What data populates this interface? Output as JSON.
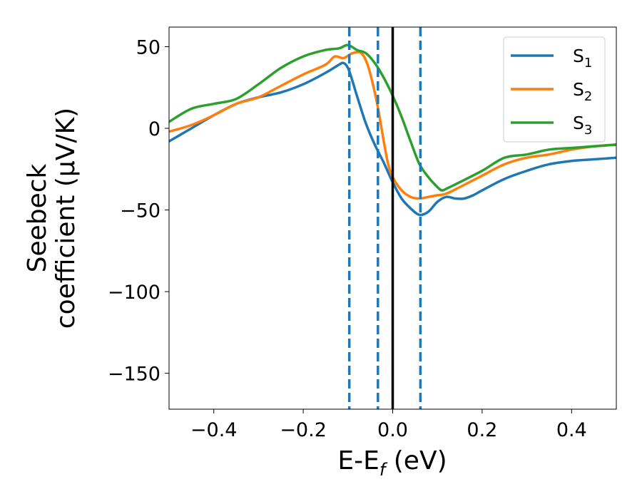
{
  "chart_data": {
    "type": "line",
    "xlabel": "E-E_f (eV)",
    "xlabel_parts": {
      "main": "E-E",
      "sub": "f",
      "tail": " (eV)"
    },
    "ylabel_lines": [
      "Seebeck",
      "coefficient  (μV/K)"
    ],
    "xlim": [
      -0.5,
      0.5
    ],
    "ylim": [
      -172,
      62
    ],
    "xticks": [
      -0.4,
      -0.2,
      0.0,
      0.2,
      0.4
    ],
    "xtick_labels": [
      "−0.4",
      "−0.2",
      "0.0",
      "0.2",
      "0.4"
    ],
    "yticks": [
      50,
      0,
      -50,
      -100,
      -150
    ],
    "ytick_labels": [
      "50",
      "0",
      "−50",
      "−100",
      "−150"
    ],
    "grid": false,
    "legend_position": "top-right",
    "series": [
      {
        "name": "S",
        "name_sub": "1",
        "color": "#1f77b4",
        "x": [
          -0.5,
          -0.45,
          -0.4,
          -0.35,
          -0.3,
          -0.25,
          -0.2,
          -0.15,
          -0.12,
          -0.11,
          -0.1,
          -0.09,
          -0.08,
          -0.06,
          -0.04,
          -0.02,
          0.0,
          0.02,
          0.04,
          0.06,
          0.08,
          0.1,
          0.12,
          0.14,
          0.16,
          0.18,
          0.2,
          0.25,
          0.3,
          0.35,
          0.4,
          0.45,
          0.5
        ],
        "y": [
          -8,
          0,
          8,
          15,
          19,
          22,
          27,
          34,
          39,
          40,
          37,
          29,
          20,
          3,
          -10,
          -21,
          -33,
          -43,
          -49,
          -53,
          -51,
          -45,
          -42,
          -43,
          -43,
          -41,
          -38,
          -31,
          -26,
          -22,
          -20,
          -19,
          -18
        ]
      },
      {
        "name": "S",
        "name_sub": "2",
        "color": "#ff7f0e",
        "x": [
          -0.5,
          -0.45,
          -0.4,
          -0.35,
          -0.3,
          -0.25,
          -0.2,
          -0.15,
          -0.13,
          -0.11,
          -0.09,
          -0.07,
          -0.055,
          -0.04,
          -0.03,
          -0.02,
          -0.01,
          0.0,
          0.02,
          0.04,
          0.06,
          0.08,
          0.1,
          0.12,
          0.15,
          0.2,
          0.25,
          0.3,
          0.35,
          0.4,
          0.45,
          0.5
        ],
        "y": [
          -2,
          2,
          8,
          15,
          19,
          26,
          33,
          39,
          44,
          43,
          46,
          46,
          38,
          22,
          8,
          -8,
          -22,
          -30,
          -38,
          -42,
          -43,
          -42,
          -41,
          -40,
          -36,
          -29,
          -22,
          -18,
          -16,
          -13,
          -11,
          -10
        ]
      },
      {
        "name": "S",
        "name_sub": "3",
        "color": "#2ca02c",
        "x": [
          -0.5,
          -0.45,
          -0.4,
          -0.35,
          -0.3,
          -0.25,
          -0.2,
          -0.15,
          -0.12,
          -0.1,
          -0.08,
          -0.06,
          -0.04,
          -0.02,
          0.0,
          0.02,
          0.04,
          0.06,
          0.08,
          0.1,
          0.11,
          0.12,
          0.15,
          0.2,
          0.25,
          0.3,
          0.35,
          0.4,
          0.45,
          0.5
        ],
        "y": [
          4,
          12,
          15,
          18,
          27,
          37,
          44,
          48,
          49,
          51,
          48,
          46,
          40,
          31,
          20,
          7,
          -8,
          -22,
          -30,
          -36,
          -38,
          -37,
          -33,
          -26,
          -18,
          -16,
          -13,
          -12,
          -11,
          -10
        ]
      }
    ],
    "reference_lines": [
      {
        "x": 0.0,
        "style": "solid",
        "color": "#000000"
      },
      {
        "x": -0.097,
        "style": "dashed",
        "color": "#1f77b4"
      },
      {
        "x": -0.033,
        "style": "dashed",
        "color": "#1f77b4"
      },
      {
        "x": 0.062,
        "style": "dashed",
        "color": "#1f77b4"
      }
    ]
  }
}
